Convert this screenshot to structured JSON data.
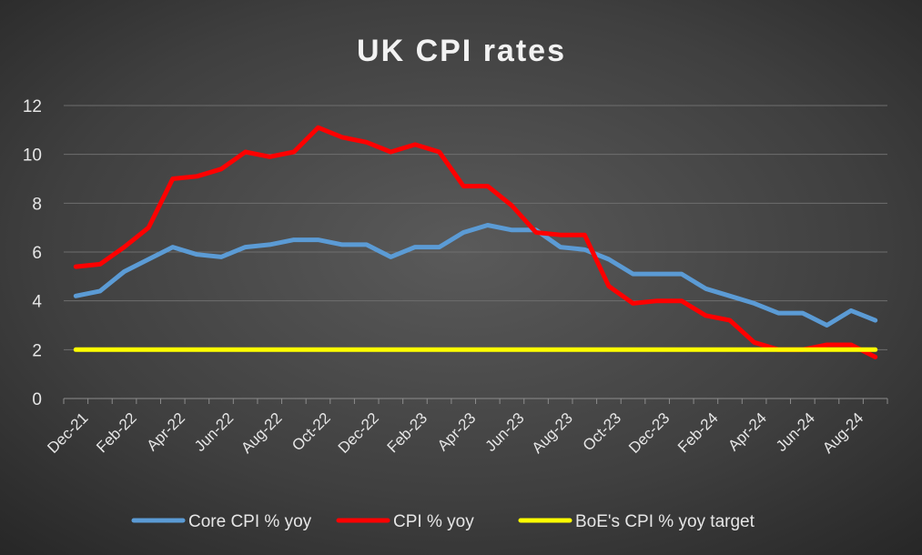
{
  "chart_data": {
    "type": "line",
    "title": "UK CPI rates",
    "xlabel": "",
    "ylabel": "",
    "ylim": [
      0,
      12
    ],
    "yticks": [
      0,
      2,
      4,
      6,
      8,
      10,
      12
    ],
    "grid": true,
    "legend_position": "bottom",
    "x": [
      "Dec-21",
      "Jan-22",
      "Feb-22",
      "Mar-22",
      "Apr-22",
      "May-22",
      "Jun-22",
      "Jul-22",
      "Aug-22",
      "Sep-22",
      "Oct-22",
      "Nov-22",
      "Dec-22",
      "Jan-23",
      "Feb-23",
      "Mar-23",
      "Apr-23",
      "May-23",
      "Jun-23",
      "Jul-23",
      "Aug-23",
      "Sep-23",
      "Oct-23",
      "Nov-23",
      "Dec-23",
      "Jan-24",
      "Feb-24",
      "Mar-24",
      "Apr-24",
      "May-24",
      "Jun-24",
      "Jul-24",
      "Aug-24",
      "Sep-24"
    ],
    "tick_labels": [
      "Dec-21",
      "Feb-22",
      "Apr-22",
      "Jun-22",
      "Aug-22",
      "Oct-22",
      "Dec-22",
      "Feb-23",
      "Apr-23",
      "Jun-23",
      "Aug-23",
      "Oct-23",
      "Dec-23",
      "Feb-24",
      "Apr-24",
      "Jun-24",
      "Aug-24"
    ],
    "series": [
      {
        "name": "Core CPI % yoy",
        "color": "#5b9bd5",
        "values": [
          4.2,
          4.4,
          5.2,
          5.7,
          6.2,
          5.9,
          5.8,
          6.2,
          6.3,
          6.5,
          6.5,
          6.3,
          6.3,
          5.8,
          6.2,
          6.2,
          6.8,
          7.1,
          6.9,
          6.9,
          6.2,
          6.1,
          5.7,
          5.1,
          5.1,
          5.1,
          4.5,
          4.2,
          3.9,
          3.5,
          3.5,
          3.0,
          3.6,
          3.2
        ]
      },
      {
        "name": "CPI % yoy",
        "color": "#ff0000",
        "values": [
          5.4,
          5.5,
          6.2,
          7.0,
          9.0,
          9.1,
          9.4,
          10.1,
          9.9,
          10.1,
          11.1,
          10.7,
          10.5,
          10.1,
          10.4,
          10.1,
          8.7,
          8.7,
          7.9,
          6.8,
          6.7,
          6.7,
          4.6,
          3.9,
          4.0,
          4.0,
          3.4,
          3.2,
          2.3,
          2.0,
          2.0,
          2.2,
          2.2,
          1.7
        ]
      },
      {
        "name": "BoE's CPI % yoy target",
        "color": "#ffff00",
        "values": [
          2,
          2,
          2,
          2,
          2,
          2,
          2,
          2,
          2,
          2,
          2,
          2,
          2,
          2,
          2,
          2,
          2,
          2,
          2,
          2,
          2,
          2,
          2,
          2,
          2,
          2,
          2,
          2,
          2,
          2,
          2,
          2,
          2,
          2
        ]
      }
    ]
  }
}
